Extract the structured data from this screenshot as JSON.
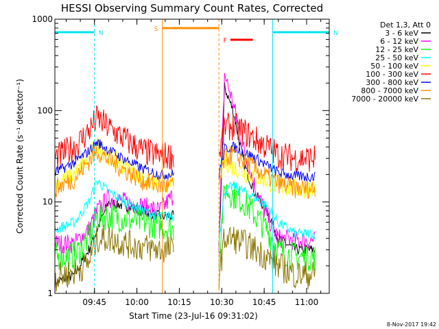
{
  "chart_data": {
    "type": "line",
    "title": "HESSI Observing Summary Count Rates, Corrected",
    "xlabel": "Start Time (23-Jul-16 09:31:02)",
    "ylabel": "Corrected Count Rate (s⁻¹ detector⁻¹)",
    "y_scale": "log",
    "ylim": [
      1,
      1000
    ],
    "xlim": [
      "09:31",
      "11:08"
    ],
    "x_ticks": [
      "09:45",
      "10:00",
      "10:15",
      "10:30",
      "10:45",
      "11:00"
    ],
    "y_ticks": [
      "1",
      "10",
      "100",
      "1000"
    ],
    "legend_header": "Det 1,3, Att 0",
    "legend_position": "right",
    "footer": "8-Nov-2017 19:42",
    "data_gaps": [
      [
        "10:13",
        "10:29"
      ]
    ],
    "annotations": [
      {
        "label": "N",
        "type": "night",
        "color": "#00e5ee",
        "start": "09:31",
        "end": "09:45"
      },
      {
        "label": "N",
        "type": "night",
        "color": "#00e5ee",
        "start": "10:48",
        "end": "11:08"
      },
      {
        "label": "S",
        "type": "saa",
        "color": "#ff8c00",
        "start": "10:09",
        "end": "10:29"
      },
      {
        "label": "F",
        "type": "flare",
        "color": "#ff0000",
        "start": "10:33",
        "end": "10:41"
      }
    ],
    "series": [
      {
        "name": "3 - 6 keV",
        "color": "#000000",
        "x": [
          "09:31",
          "09:38",
          "09:43",
          "09:46",
          "09:50",
          "09:56",
          "10:02",
          "10:08",
          "10:13",
          "10:29",
          "10:31",
          "10:34",
          "10:38",
          "10:42",
          "10:46",
          "10:50",
          "10:56",
          "11:01",
          "11:03"
        ],
        "values": [
          1.3,
          1.6,
          3,
          5,
          10,
          9,
          8,
          7,
          7,
          3,
          180,
          100,
          25,
          12,
          8,
          4,
          3,
          3,
          3
        ]
      },
      {
        "name": "6 - 12 keV",
        "color": "#ff00ff",
        "x": [
          "09:31",
          "09:38",
          "09:43",
          "09:46",
          "09:50",
          "09:56",
          "10:02",
          "10:08",
          "10:13",
          "10:29",
          "10:31",
          "10:34",
          "10:38",
          "10:42",
          "10:46",
          "10:50",
          "10:56",
          "11:01",
          "11:03"
        ],
        "values": [
          3.5,
          3.5,
          5,
          8,
          11,
          10,
          9,
          8,
          12,
          3.5,
          250,
          120,
          35,
          14,
          7,
          4,
          3.8,
          3.8,
          3.8
        ]
      },
      {
        "name": "12 - 25 keV",
        "color": "#00ff00",
        "x": [
          "09:31",
          "09:38",
          "09:43",
          "09:46",
          "09:50",
          "09:56",
          "10:02",
          "10:08",
          "10:13",
          "10:29",
          "10:31",
          "10:34",
          "10:38",
          "10:42",
          "10:46",
          "10:50",
          "10:56",
          "11:01",
          "11:03"
        ],
        "values": [
          2.5,
          2.6,
          4,
          7,
          7,
          6.5,
          6,
          5.5,
          5,
          2.5,
          14,
          12,
          10,
          7,
          5,
          3,
          2.5,
          2.5,
          2.5
        ]
      },
      {
        "name": "25 - 50 keV",
        "color": "#00ffff",
        "x": [
          "09:31",
          "09:38",
          "09:43",
          "09:46",
          "09:50",
          "09:56",
          "10:02",
          "10:08",
          "10:13",
          "10:29",
          "10:31",
          "10:34",
          "10:38",
          "10:42",
          "10:46",
          "10:50",
          "10:56",
          "11:01",
          "11:03"
        ],
        "values": [
          5,
          6,
          10,
          17,
          13,
          10,
          8,
          7,
          7,
          4,
          13,
          15,
          13,
          11,
          9,
          6,
          4.5,
          4.5,
          4.5
        ]
      },
      {
        "name": "50 - 100 keV",
        "color": "#ffff00",
        "x": [
          "09:31",
          "09:38",
          "09:43",
          "09:46",
          "09:50",
          "09:56",
          "10:02",
          "10:08",
          "10:13",
          "10:29",
          "10:31",
          "10:34",
          "10:38",
          "10:42",
          "10:46",
          "10:50",
          "10:56",
          "11:01",
          "11:03"
        ],
        "values": [
          16,
          20,
          30,
          42,
          32,
          24,
          18,
          16,
          16,
          16,
          28,
          24,
          21,
          19,
          17,
          15,
          14,
          14,
          14
        ]
      },
      {
        "name": "100 - 300 keV",
        "color": "#ff0000",
        "x": [
          "09:31",
          "09:38",
          "09:43",
          "09:46",
          "09:50",
          "09:56",
          "10:02",
          "10:08",
          "10:13",
          "10:29",
          "10:31",
          "10:34",
          "10:38",
          "10:42",
          "10:46",
          "10:50",
          "10:56",
          "11:01",
          "11:03"
        ],
        "values": [
          30,
          40,
          60,
          82,
          65,
          48,
          36,
          32,
          32,
          32,
          65,
          68,
          58,
          48,
          40,
          33,
          30,
          30,
          30
        ]
      },
      {
        "name": "300 - 800 keV",
        "color": "#0000ff",
        "x": [
          "09:31",
          "09:38",
          "09:43",
          "09:46",
          "09:50",
          "09:56",
          "10:02",
          "10:08",
          "10:13",
          "10:29",
          "10:31",
          "10:34",
          "10:38",
          "10:42",
          "10:46",
          "10:50",
          "10:56",
          "11:01",
          "11:03"
        ],
        "values": [
          21,
          27,
          36,
          45,
          37,
          29,
          23,
          20,
          20,
          20,
          38,
          40,
          35,
          30,
          25,
          21,
          19,
          19,
          19
        ]
      },
      {
        "name": "800 - 7000 keV",
        "color": "#ff8c00",
        "x": [
          "09:31",
          "09:38",
          "09:43",
          "09:46",
          "09:50",
          "09:56",
          "10:02",
          "10:08",
          "10:13",
          "10:29",
          "10:31",
          "10:34",
          "10:38",
          "10:42",
          "10:46",
          "10:50",
          "10:56",
          "11:01",
          "11:03"
        ],
        "values": [
          14,
          18,
          28,
          36,
          29,
          22,
          17,
          15,
          15,
          15,
          30,
          33,
          28,
          23,
          19,
          16,
          14,
          14,
          14
        ]
      },
      {
        "name": "7000 - 20000 keV",
        "color": "#8b7500",
        "x": [
          "09:31",
          "09:38",
          "09:43",
          "09:46",
          "09:50",
          "09:56",
          "10:02",
          "10:08",
          "10:13",
          "10:29",
          "10:31",
          "10:34",
          "10:38",
          "10:42",
          "10:46",
          "10:50",
          "10:56",
          "11:01",
          "11:03"
        ],
        "values": [
          1.5,
          1.7,
          2.2,
          4,
          4,
          3.5,
          3.2,
          3,
          3,
          1.6,
          4,
          4,
          3.5,
          3,
          2.5,
          2,
          1.6,
          1.6,
          1.6
        ]
      }
    ]
  }
}
